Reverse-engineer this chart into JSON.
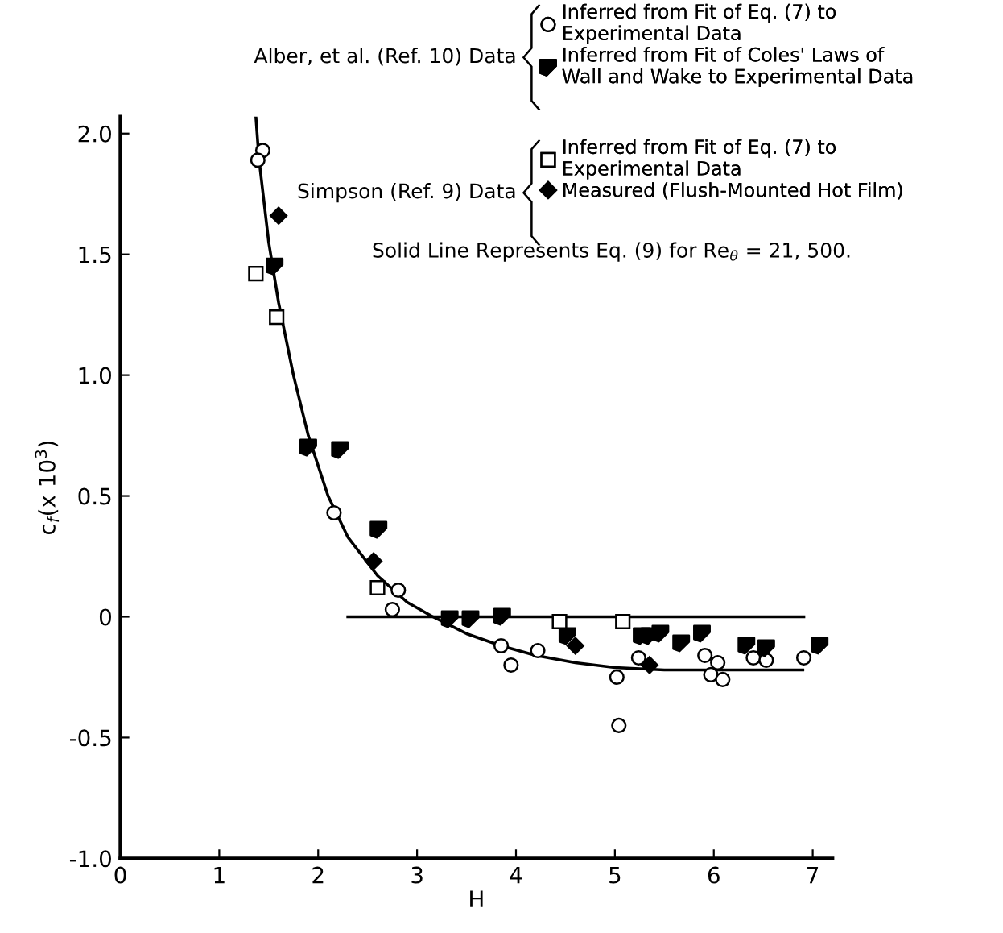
{
  "chart_data": {
    "type": "scatter",
    "xlabel": "H",
    "ylabel": "c$_{f}$(x 10$^{3}$)",
    "xlim": [
      0,
      7.2
    ],
    "ylim": [
      -1.0,
      2.07
    ],
    "xticks": [
      0,
      1,
      2,
      3,
      4,
      5,
      6,
      7
    ],
    "yticks": [
      {
        "value": -1.0,
        "label": "-1.0"
      },
      {
        "value": -0.5,
        "label": "-0.5"
      },
      0,
      {
        "value": 0.5,
        "label": "0.5"
      },
      {
        "value": 1.0,
        "label": "1.0"
      },
      {
        "value": 1.5,
        "label": "1.5"
      },
      {
        "value": 2.0,
        "label": "2.0"
      }
    ],
    "grid": false,
    "legend": "top right",
    "annotations": [
      "Alber, et al. (Ref. 10) Data",
      "Simpson (Ref. 9) Data",
      "Solid Line Represents Eq. (9) for Re$_{θ}$ = 21, 500."
    ],
    "series": [
      {
        "name": "Inferred from Fit of Eq. (7) to\nExperimental Data",
        "color": "#000000",
        "marker": "circle",
        "x": [
          1.44,
          1.39,
          2.16,
          2.81,
          2.75,
          3.85,
          3.95,
          4.22,
          5.02,
          5.04,
          5.24,
          5.91,
          6.04,
          5.97,
          6.09,
          6.4,
          6.53,
          6.91
        ],
        "values": [
          1.93,
          1.89,
          0.43,
          0.11,
          0.03,
          -0.12,
          -0.2,
          -0.14,
          -0.25,
          -0.45,
          -0.17,
          -0.16,
          -0.19,
          -0.24,
          -0.26,
          -0.17,
          -0.18,
          -0.17
        ]
      },
      {
        "name": "Inferred from Fit of Coles' Laws of\nWall and Wake to Experimental Data",
        "color": "#000000",
        "marker": "triangle",
        "x": [
          1.56,
          1.9,
          2.22,
          2.61,
          3.33,
          3.54,
          3.86,
          4.52,
          5.27,
          5.35,
          5.46,
          5.67,
          5.88,
          6.33,
          6.53,
          7.07
        ],
        "values": [
          1.45,
          0.7,
          0.69,
          0.36,
          -0.01,
          -0.01,
          0.0,
          -0.08,
          -0.08,
          -0.08,
          -0.07,
          -0.11,
          -0.07,
          -0.12,
          -0.13,
          -0.12
        ]
      },
      {
        "name": "Inferred from Fit of Eq. (7) to\nExperimental Data",
        "color": "#000000",
        "marker": "square",
        "x": [
          1.37,
          1.58,
          2.6,
          4.44,
          5.08
        ],
        "values": [
          1.42,
          1.24,
          0.12,
          -0.02,
          -0.02
        ]
      },
      {
        "name": "Measured (Flush-Mounted Hot Film)",
        "color": "#000000",
        "marker": "diamond",
        "x": [
          1.6,
          2.56,
          4.6,
          5.35
        ],
        "values": [
          1.66,
          0.23,
          -0.12,
          -0.2
        ]
      },
      {
        "type": "line",
        "color": "#000000",
        "line_style": "solid",
        "x": [
          1.37,
          1.4,
          1.5,
          1.6,
          1.75,
          1.9,
          2.1,
          2.3,
          2.6,
          2.9,
          3.16,
          3.5,
          3.85,
          4.2,
          4.6,
          5.0,
          5.5,
          6.0,
          6.9
        ],
        "values": [
          2.07,
          1.9,
          1.55,
          1.3,
          1.0,
          0.75,
          0.5,
          0.33,
          0.17,
          0.06,
          0,
          -0.07,
          -0.12,
          -0.16,
          -0.19,
          -0.21,
          -0.22,
          -0.22,
          -0.22
        ]
      },
      {
        "type": "line",
        "color": "#000000",
        "line_style": "solid",
        "x": [
          2.3,
          6.91
        ],
        "values": [
          0,
          0
        ]
      }
    ]
  }
}
